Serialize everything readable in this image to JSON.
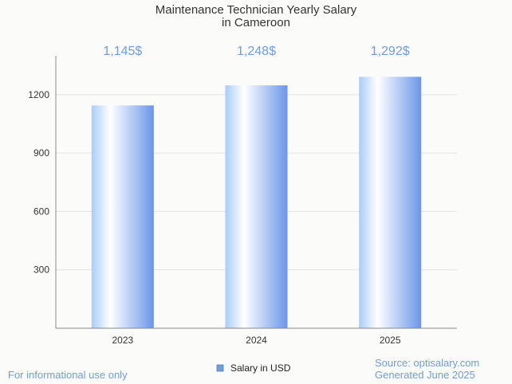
{
  "chart_data": {
    "type": "bar",
    "title_lines": [
      "Maintenance Technician Yearly Salary",
      "in Cameroon"
    ],
    "categories": [
      "2023",
      "2024",
      "2025"
    ],
    "series": [
      {
        "name": "Salary in USD",
        "values": [
          1145,
          1248,
          1292
        ],
        "data_labels": [
          "1,145$",
          "1,248$",
          "1,292$"
        ]
      }
    ],
    "ylim": [
      0,
      1400
    ],
    "yticks": [
      300,
      600,
      900,
      1200
    ],
    "grid": true,
    "legend_position": "bottom-center"
  },
  "footer": {
    "disclaimer": "For informational use only",
    "source": "Source: optisalary.com",
    "generated": "Generated June 2025"
  },
  "colors": {
    "bar_light": "#ffffff",
    "bar_mid": "#a9cdf7",
    "bar_dark": "#6a96e8",
    "data_label": "#6d9ce3",
    "grid": "#e3e3e3",
    "axis": "#888888",
    "legend_swatch": "#6f9fdc",
    "footer": "#6d9ce3"
  }
}
